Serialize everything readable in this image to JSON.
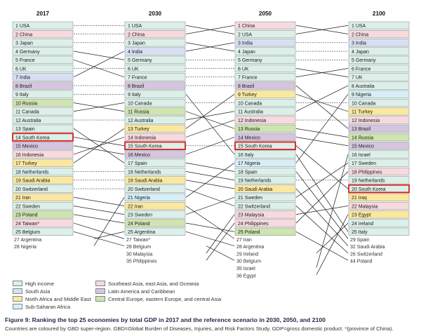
{
  "figure": {
    "caption_title": "Figure 9: Ranking the top 25 economies by total GDP in 2017 and the reference scenario in 2030, 2050, and 2100",
    "caption_note": "Countries are coloured by GBD super-region. GBD=Global Burden of Diseases, Injuries, and Risk Factors Study. GDP=gross domestic product. *(province of China)."
  },
  "colors": {
    "High income": "#dcefe8",
    "Southeast Asia, east Asia, and Oceania": "#f7d9de",
    "South Asia": "#d9dff3",
    "Latin America and Caribbean": "#d6c5df",
    "North Africa and Middle East": "#fbe8a0",
    "Central Europe, eastern Europe, and central Asia": "#cfe4b0",
    "Sub-Saharan Africa": "#d7eef5"
  },
  "chart_data": {
    "type": "table",
    "title": "Ranking the top 25 economies by total GDP",
    "years": [
      "2017",
      "2030",
      "2050",
      "2100"
    ],
    "highlight": "South Korea",
    "legend": [
      {
        "label": "High income",
        "region": "High income"
      },
      {
        "label": "South Asia",
        "region": "South Asia"
      },
      {
        "label": "North Africa and Middle East",
        "region": "North Africa and Middle East"
      },
      {
        "label": "Sub-Saharan Africa",
        "region": "Sub-Saharan Africa"
      },
      {
        "label": "Southeast Asia, east Asia, and Oceania",
        "region": "Southeast Asia, east Asia, and Oceania"
      },
      {
        "label": "Latin America and Caribbean",
        "region": "Latin America and Caribbean"
      },
      {
        "label": "Central Europe, eastern Europe, and central Asia",
        "region": "Central Europe, eastern Europe, and central Asia"
      }
    ],
    "regions": {
      "USA": "High income",
      "China": "Southeast Asia, east Asia, and Oceania",
      "Japan": "High income",
      "Germany": "High income",
      "France": "High income",
      "UK": "High income",
      "India": "South Asia",
      "Brazil": "Latin America and Caribbean",
      "Italy": "High income",
      "Russia": "Central Europe, eastern Europe, and central Asia",
      "Canada": "High income",
      "Australia": "High income",
      "Spain": "High income",
      "South Korea": "High income",
      "Mexico": "Latin America and Caribbean",
      "Indonesia": "Southeast Asia, east Asia, and Oceania",
      "Turkey": "North Africa and Middle East",
      "Netherlands": "High income",
      "Saudi Arabia": "North Africa and Middle East",
      "Switzerland": "High income",
      "Iran": "North Africa and Middle East",
      "Sweden": "High income",
      "Poland": "Central Europe, eastern Europe, and central Asia",
      "Taiwan*": "Southeast Asia, east Asia, and Oceania",
      "Belgium": "High income",
      "Argentina": "High income",
      "Nigeria": "Sub-Saharan Africa",
      "Malaysia": "Southeast Asia, east Asia, and Oceania",
      "Philippines": "Southeast Asia, east Asia, and Oceania",
      "Israel": "High income",
      "Ireland": "High income",
      "Egypt": "North Africa and Middle East",
      "Iraq": "North Africa and Middle East"
    },
    "columns": [
      {
        "year": "2017",
        "ranks": [
          {
            "rank": 1,
            "name": "USA"
          },
          {
            "rank": 2,
            "name": "China"
          },
          {
            "rank": 3,
            "name": "Japan"
          },
          {
            "rank": 4,
            "name": "Germany"
          },
          {
            "rank": 5,
            "name": "France"
          },
          {
            "rank": 6,
            "name": "UK"
          },
          {
            "rank": 7,
            "name": "India"
          },
          {
            "rank": 8,
            "name": "Brazil"
          },
          {
            "rank": 9,
            "name": "Italy"
          },
          {
            "rank": 10,
            "name": "Russia"
          },
          {
            "rank": 11,
            "name": "Canada"
          },
          {
            "rank": 12,
            "name": "Australia"
          },
          {
            "rank": 13,
            "name": "Spain"
          },
          {
            "rank": 14,
            "name": "South Korea"
          },
          {
            "rank": 15,
            "name": "Mexico"
          },
          {
            "rank": 16,
            "name": "Indonesia"
          },
          {
            "rank": 17,
            "name": "Turkey"
          },
          {
            "rank": 18,
            "name": "Netherlands"
          },
          {
            "rank": 19,
            "name": "Saudi Arabia"
          },
          {
            "rank": 20,
            "name": "Switzerland"
          },
          {
            "rank": 21,
            "name": "Iran"
          },
          {
            "rank": 22,
            "name": "Sweden"
          },
          {
            "rank": 23,
            "name": "Poland"
          },
          {
            "rank": 24,
            "name": "Taiwan*"
          },
          {
            "rank": 25,
            "name": "Belgium"
          }
        ],
        "extras": [
          {
            "rank": 27,
            "name": "Argentina"
          },
          {
            "rank": 28,
            "name": "Nigeria"
          }
        ]
      },
      {
        "year": "2030",
        "ranks": [
          {
            "rank": 1,
            "name": "USA"
          },
          {
            "rank": 2,
            "name": "China"
          },
          {
            "rank": 3,
            "name": "Japan"
          },
          {
            "rank": 4,
            "name": "India"
          },
          {
            "rank": 5,
            "name": "Germany"
          },
          {
            "rank": 6,
            "name": "UK"
          },
          {
            "rank": 7,
            "name": "France"
          },
          {
            "rank": 8,
            "name": "Brazil"
          },
          {
            "rank": 9,
            "name": "Italy"
          },
          {
            "rank": 10,
            "name": "Canada"
          },
          {
            "rank": 11,
            "name": "Russia"
          },
          {
            "rank": 12,
            "name": "Australia"
          },
          {
            "rank": 13,
            "name": "Turkey"
          },
          {
            "rank": 14,
            "name": "Indonesia"
          },
          {
            "rank": 15,
            "name": "South Korea"
          },
          {
            "rank": 16,
            "name": "Mexico"
          },
          {
            "rank": 17,
            "name": "Spain"
          },
          {
            "rank": 18,
            "name": "Netherlands"
          },
          {
            "rank": 19,
            "name": "Saudi Arabia"
          },
          {
            "rank": 20,
            "name": "Switzerland"
          },
          {
            "rank": 21,
            "name": "Nigeria"
          },
          {
            "rank": 22,
            "name": "Iran"
          },
          {
            "rank": 23,
            "name": "Sweden"
          },
          {
            "rank": 24,
            "name": "Poland"
          },
          {
            "rank": 25,
            "name": "Argentina"
          }
        ],
        "extras": [
          {
            "rank": 27,
            "name": "Taiwan*"
          },
          {
            "rank": 28,
            "name": "Belgium"
          },
          {
            "rank": 30,
            "name": "Malaysia"
          },
          {
            "rank": 35,
            "name": "Philippines"
          }
        ]
      },
      {
        "year": "2050",
        "ranks": [
          {
            "rank": 1,
            "name": "China"
          },
          {
            "rank": 2,
            "name": "USA"
          },
          {
            "rank": 3,
            "name": "India"
          },
          {
            "rank": 4,
            "name": "Japan"
          },
          {
            "rank": 5,
            "name": "Germany"
          },
          {
            "rank": 6,
            "name": "UK"
          },
          {
            "rank": 7,
            "name": "France"
          },
          {
            "rank": 8,
            "name": "Brazil"
          },
          {
            "rank": 9,
            "name": "Turkey"
          },
          {
            "rank": 10,
            "name": "Canada"
          },
          {
            "rank": 11,
            "name": "Australia"
          },
          {
            "rank": 12,
            "name": "Indonesia"
          },
          {
            "rank": 13,
            "name": "Russia"
          },
          {
            "rank": 14,
            "name": "Mexico"
          },
          {
            "rank": 15,
            "name": "South Korea"
          },
          {
            "rank": 16,
            "name": "Italy"
          },
          {
            "rank": 17,
            "name": "Nigeria"
          },
          {
            "rank": 18,
            "name": "Spain"
          },
          {
            "rank": 19,
            "name": "Netherlands"
          },
          {
            "rank": 20,
            "name": "Saudi Arabia"
          },
          {
            "rank": 21,
            "name": "Sweden"
          },
          {
            "rank": 22,
            "name": "Switzerland"
          },
          {
            "rank": 23,
            "name": "Malaysia"
          },
          {
            "rank": 24,
            "name": "Philippines"
          },
          {
            "rank": 25,
            "name": "Poland"
          }
        ],
        "extras": [
          {
            "rank": 27,
            "name": "Iran"
          },
          {
            "rank": 28,
            "name": "Argentina"
          },
          {
            "rank": 29,
            "name": "Ireland"
          },
          {
            "rank": 30,
            "name": "Belgium"
          },
          {
            "rank": 35,
            "name": "Israel"
          },
          {
            "rank": 36,
            "name": "Egypt"
          }
        ]
      },
      {
        "year": "2100",
        "ranks": [
          {
            "rank": 1,
            "name": "USA"
          },
          {
            "rank": 2,
            "name": "China"
          },
          {
            "rank": 3,
            "name": "India"
          },
          {
            "rank": 4,
            "name": "Japan"
          },
          {
            "rank": 5,
            "name": "Germany"
          },
          {
            "rank": 6,
            "name": "France"
          },
          {
            "rank": 7,
            "name": "UK"
          },
          {
            "rank": 8,
            "name": "Australia"
          },
          {
            "rank": 9,
            "name": "Nigeria"
          },
          {
            "rank": 10,
            "name": "Canada"
          },
          {
            "rank": 11,
            "name": "Turkey"
          },
          {
            "rank": 12,
            "name": "Indonesia"
          },
          {
            "rank": 13,
            "name": "Brazil"
          },
          {
            "rank": 14,
            "name": "Russia"
          },
          {
            "rank": 15,
            "name": "Mexico"
          },
          {
            "rank": 16,
            "name": "Israel"
          },
          {
            "rank": 17,
            "name": "Sweden"
          },
          {
            "rank": 18,
            "name": "Philippines"
          },
          {
            "rank": 19,
            "name": "Netherlands"
          },
          {
            "rank": 20,
            "name": "South Korea"
          },
          {
            "rank": 21,
            "name": "Iraq"
          },
          {
            "rank": 22,
            "name": "Malaysia"
          },
          {
            "rank": 23,
            "name": "Egypt"
          },
          {
            "rank": 24,
            "name": "Ireland"
          },
          {
            "rank": 25,
            "name": "Italy"
          }
        ],
        "extras": [
          {
            "rank": 29,
            "name": "Spain"
          },
          {
            "rank": 32,
            "name": "Saudi Arabia"
          },
          {
            "rank": 26,
            "name": "Switzerland"
          },
          {
            "rank": 44,
            "name": "Poland"
          }
        ]
      }
    ]
  }
}
